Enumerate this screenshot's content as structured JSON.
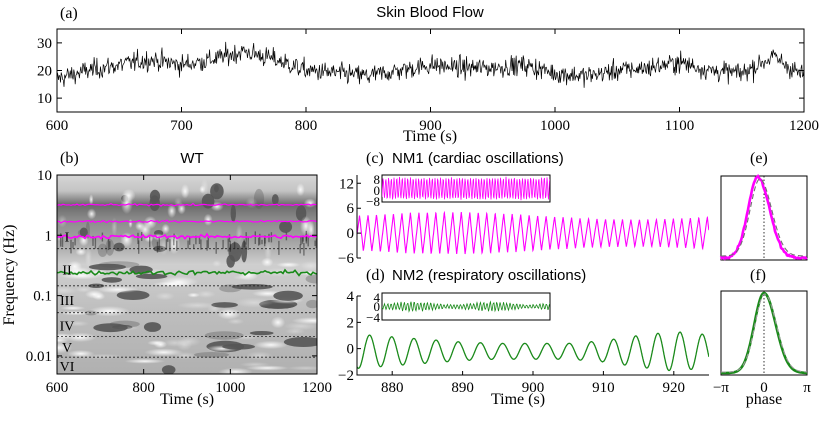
{
  "panels": {
    "a": {
      "letter": "(a)",
      "title": "Skin Blood Flow",
      "xlabel": "Time (s)",
      "xticks": [
        "600",
        "700",
        "800",
        "900",
        "1000",
        "1100",
        "1200"
      ],
      "yticks": [
        "10",
        "20",
        "30"
      ]
    },
    "b": {
      "letter": "(b)",
      "title": "WT",
      "xlabel": "Time (s)",
      "ylabel": "Frequency (Hz)",
      "xticks": [
        "600",
        "800",
        "1000",
        "1200"
      ],
      "yticks": [
        "10",
        "1",
        "0.1",
        "0.01"
      ],
      "band_labels": [
        "I",
        "II",
        "III",
        "IV",
        "V",
        "VI"
      ]
    },
    "c": {
      "letter": "(c)",
      "title": "NM1 (cardiac oscillations)",
      "yticks": [
        "12",
        "6",
        "0",
        "−6"
      ],
      "inset_yticks": [
        "8",
        "0",
        "−8"
      ]
    },
    "d": {
      "letter": "(d)",
      "title": "NM2 (respiratory oscillations)",
      "xlabel": "Time (s)",
      "xticks": [
        "880",
        "890",
        "900",
        "910",
        "920"
      ],
      "yticks": [
        "4",
        "2",
        "0",
        "−2"
      ],
      "inset_yticks": [
        "4",
        "0",
        "−4"
      ]
    },
    "e": {
      "letter": "(e)"
    },
    "f": {
      "letter": "(f)",
      "xlabel": "phase",
      "xticks": [
        "−π",
        "0",
        "π"
      ]
    }
  },
  "colors": {
    "cardiac": "#ff00ff",
    "respiratory": "#1a8a1a",
    "signal": "#000000"
  },
  "chart_data": [
    {
      "id": "a",
      "type": "line",
      "title": "Skin Blood Flow",
      "xlabel": "Time (s)",
      "ylabel": "",
      "xlim": [
        600,
        1200
      ],
      "ylim": [
        5,
        35
      ],
      "series": [
        {
          "x": [
            600,
            625,
            650,
            675,
            700,
            725,
            750,
            775,
            800,
            825,
            850,
            875,
            900,
            925,
            950,
            975,
            1000,
            1025,
            1050,
            1075,
            1100,
            1125,
            1150,
            1175,
            1200
          ],
          "values": [
            17,
            20,
            22,
            24,
            22,
            24,
            27,
            24,
            20,
            19,
            18,
            20,
            22,
            21,
            21,
            22,
            19,
            18,
            20,
            21,
            23,
            20,
            19,
            25,
            18
          ]
        }
      ]
    },
    {
      "id": "b",
      "type": "heatmap",
      "title": "WT",
      "xlabel": "Time (s)",
      "ylabel": "Frequency (Hz)",
      "xlim": [
        600,
        1200
      ],
      "ylim": [
        0.005,
        10
      ],
      "yscale": "log",
      "bands": [
        "I",
        "II",
        "III",
        "IV",
        "V",
        "VI"
      ],
      "band_boundaries_hz": [
        0.6,
        0.145,
        0.052,
        0.021,
        0.0095
      ]
    },
    {
      "id": "c",
      "type": "line",
      "title": "NM1 (cardiac oscillations)",
      "xlim": [
        875,
        925
      ],
      "ylim": [
        -6,
        14
      ],
      "series": [
        {
          "frequency_hz": 0.83,
          "amplitude": 5
        }
      ]
    },
    {
      "id": "d",
      "type": "line",
      "title": "NM2 (respiratory oscillations)",
      "xlabel": "Time (s)",
      "xlim": [
        875,
        925
      ],
      "ylim": [
        -2,
        4
      ],
      "series": [
        {
          "x": [
            875,
            880,
            885,
            890,
            895,
            900,
            905,
            910,
            915,
            920,
            924
          ],
          "amplitude": [
            1.3,
            1.1,
            0.9,
            0.7,
            0.6,
            0.6,
            0.6,
            0.8,
            1.2,
            1.5,
            1.3
          ]
        }
      ]
    },
    {
      "id": "f",
      "type": "line",
      "xlabel": "phase",
      "xticks": [
        "−π",
        "0",
        "π"
      ]
    }
  ]
}
